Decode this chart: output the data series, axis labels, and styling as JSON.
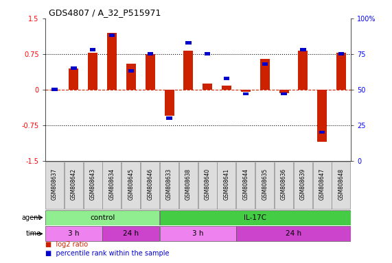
{
  "title": "GDS4807 / A_32_P515971",
  "samples": [
    "GSM808637",
    "GSM808642",
    "GSM808643",
    "GSM808634",
    "GSM808645",
    "GSM808646",
    "GSM808633",
    "GSM808638",
    "GSM808640",
    "GSM808641",
    "GSM808644",
    "GSM808635",
    "GSM808636",
    "GSM808639",
    "GSM808647",
    "GSM808648"
  ],
  "log2_ratio": [
    0.0,
    0.45,
    0.78,
    1.2,
    0.55,
    0.75,
    -0.55,
    0.82,
    0.12,
    0.08,
    -0.05,
    0.65,
    -0.08,
    0.82,
    -1.1,
    0.77
  ],
  "percentile": [
    50,
    65,
    78,
    88,
    63,
    75,
    30,
    83,
    75,
    58,
    47,
    68,
    47,
    78,
    20,
    75
  ],
  "agent_groups": [
    {
      "label": "control",
      "start": 0,
      "end": 6,
      "color": "#90EE90"
    },
    {
      "label": "IL-17C",
      "start": 6,
      "end": 16,
      "color": "#44CC44"
    }
  ],
  "time_groups": [
    {
      "label": "3 h",
      "start": 0,
      "end": 3,
      "color": "#EE82EE"
    },
    {
      "label": "24 h",
      "start": 3,
      "end": 6,
      "color": "#CC44CC"
    },
    {
      "label": "3 h",
      "start": 6,
      "end": 10,
      "color": "#EE82EE"
    },
    {
      "label": "24 h",
      "start": 10,
      "end": 16,
      "color": "#CC44CC"
    }
  ],
  "bar_color": "#CC2200",
  "dot_color": "#0000CC",
  "ylim_left": [
    -1.5,
    1.5
  ],
  "ylim_right": [
    0,
    100
  ],
  "yticks_left": [
    -1.5,
    -0.75,
    0,
    0.75,
    1.5
  ],
  "yticks_right": [
    0,
    25,
    50,
    75,
    100
  ],
  "hlines": [
    -0.75,
    0.0,
    0.75
  ],
  "legend_items": [
    {
      "label": "log2 ratio",
      "color": "#CC2200"
    },
    {
      "label": "percentile rank within the sample",
      "color": "#0000CC"
    }
  ],
  "bg_color": "#FFFFFF",
  "label_bg": "#DDDDDD"
}
